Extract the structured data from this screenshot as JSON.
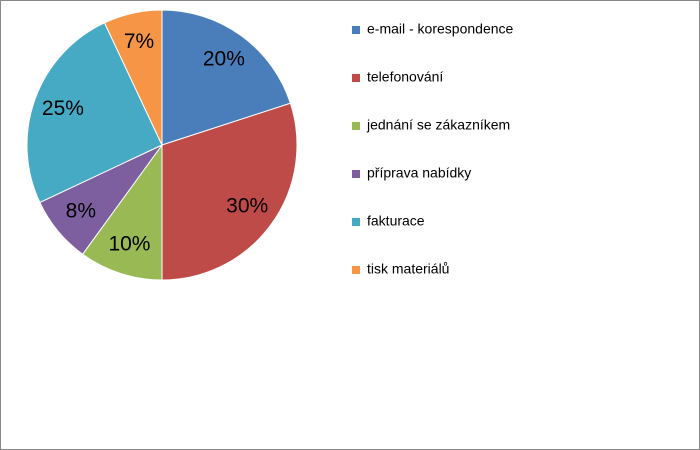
{
  "chart_data": {
    "type": "pie",
    "categories": [
      "e-mail - korespondence",
      "telefonování",
      "jednání se zákazníkem",
      "příprava nabídky",
      "fakturace",
      "tisk materiálů"
    ],
    "values": [
      20,
      30,
      10,
      8,
      25,
      7
    ],
    "value_labels": [
      "20%",
      "30%",
      "10%",
      "8%",
      "25%",
      "7%"
    ],
    "colors": [
      "#4a7ebb",
      "#be4b48",
      "#98b954",
      "#7d5fa0",
      "#46aac5",
      "#f69546"
    ],
    "legend": "right"
  }
}
